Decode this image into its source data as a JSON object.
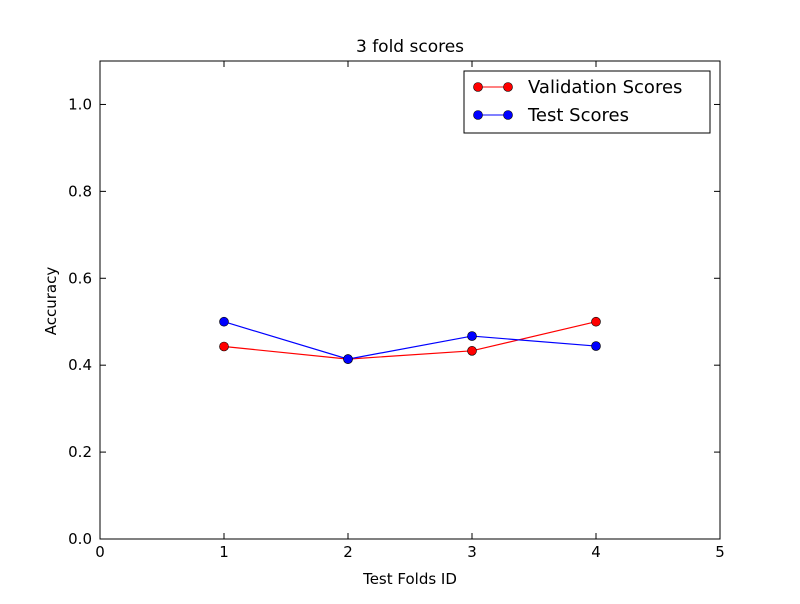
{
  "chart_data": {
    "type": "line",
    "title": "3 fold scores",
    "xlabel": "Test Folds ID",
    "ylabel": "Accuracy",
    "xlim": [
      0,
      5
    ],
    "ylim": [
      0,
      1.1
    ],
    "x_ticks": [
      0,
      1,
      2,
      3,
      4,
      5
    ],
    "x_tick_labels": [
      "0",
      "1",
      "2",
      "3",
      "4",
      "5"
    ],
    "y_ticks": [
      0,
      0.2,
      0.4,
      0.6,
      0.8,
      1.0
    ],
    "y_tick_labels": [
      "0.0",
      "0.2",
      "0.4",
      "0.6",
      "0.8",
      "1.0"
    ],
    "grid": false,
    "legend_position": "top-right",
    "series": [
      {
        "name": "Validation Scores",
        "color": "#ff0000",
        "marker": "circle",
        "x": [
          1,
          2,
          3,
          4
        ],
        "y": [
          0.443,
          0.414,
          0.433,
          0.5
        ]
      },
      {
        "name": "Test Scores",
        "color": "#0000ff",
        "marker": "circle",
        "x": [
          1,
          2,
          3,
          4
        ],
        "y": [
          0.5,
          0.414,
          0.467,
          0.444
        ]
      }
    ]
  }
}
